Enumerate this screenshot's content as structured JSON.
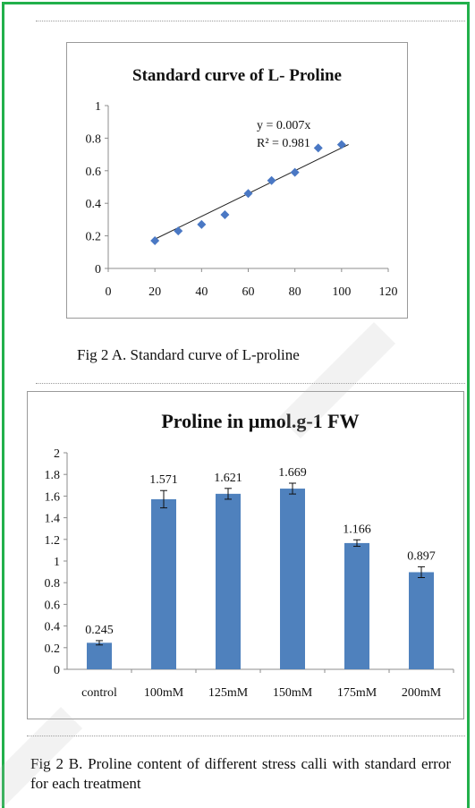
{
  "figure_a": {
    "caption": "Fig 2 A. Standard curve of L-proline",
    "trendline": {
      "equation": "y = 0.007x",
      "r2_label": "R² = 0.981",
      "slope": 0.007
    }
  },
  "figure_b": {
    "caption": "Fig 2 B. Proline content of different stress calli   with standard error for each treatment"
  },
  "chart_data": [
    {
      "type": "scatter",
      "title": "Standard curve of L- Proline",
      "xlabel": "",
      "ylabel": "",
      "xlim": [
        0,
        120
      ],
      "ylim": [
        0,
        1
      ],
      "xticks": [
        "0",
        "20",
        "40",
        "60",
        "80",
        "100",
        "120"
      ],
      "yticks": [
        "0",
        "0.2",
        "0.4",
        "0.6",
        "0.8",
        "1"
      ],
      "grid": false,
      "series": [
        {
          "x": [
            20,
            30,
            40,
            50,
            60,
            70,
            80,
            90,
            100
          ],
          "y": [
            0.17,
            0.23,
            0.27,
            0.33,
            0.46,
            0.54,
            0.59,
            0.74,
            0.76
          ],
          "color": "#4a78c4",
          "marker": "diamond"
        }
      ]
    },
    {
      "type": "bar",
      "title": "Proline in µmol.g-1 FW",
      "xlabel": "",
      "ylabel": "",
      "ylim": [
        0,
        2
      ],
      "yticks": [
        "0",
        "0.2",
        "0.4",
        "0.6",
        "0.8",
        "1",
        "1.2",
        "1.4",
        "1.6",
        "1.8",
        "2"
      ],
      "grid": false,
      "categories": [
        "control",
        "100mM",
        "125mM",
        "150mM",
        "175mM",
        "200mM"
      ],
      "values": [
        0.245,
        1.571,
        1.621,
        1.669,
        1.166,
        0.897
      ],
      "data_labels": [
        "0.245",
        "1.571",
        "1.621",
        "1.669",
        "1.166",
        "0.897"
      ],
      "errors": [
        0.02,
        0.08,
        0.05,
        0.05,
        0.03,
        0.05
      ],
      "color": "#4f81bd"
    }
  ]
}
